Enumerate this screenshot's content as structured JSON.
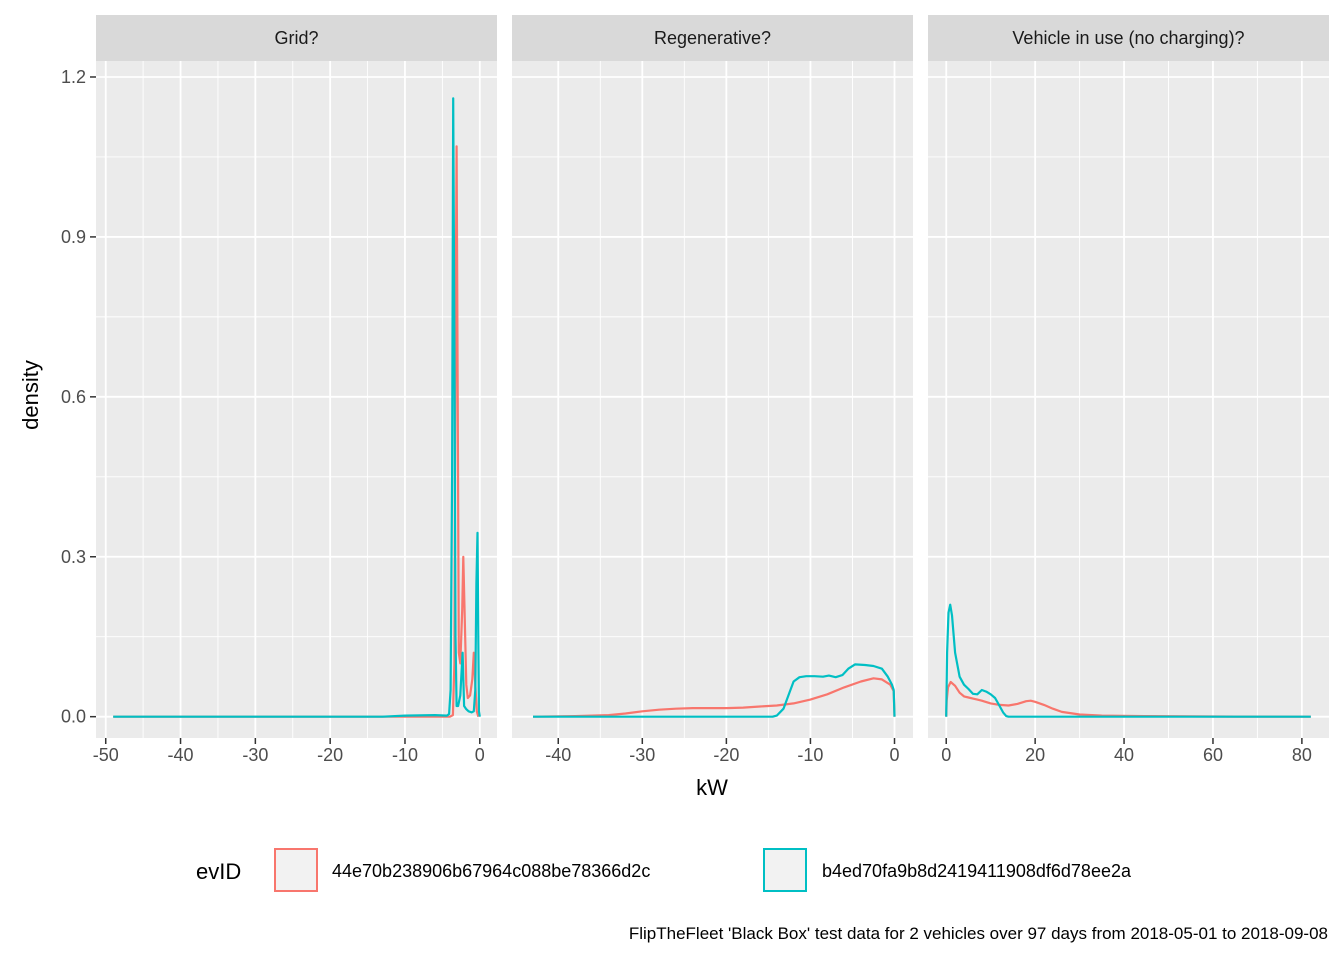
{
  "chart_data": {
    "type": "line",
    "xlabel": "kW",
    "ylabel": "density",
    "caption": "FlipTheFleet 'Black Box' test data for 2 vehicles over 97 days from 2018-05-01 to 2018-09-08",
    "ylim": [
      -0.04,
      1.23
    ],
    "y_ticks": [
      0.0,
      0.3,
      0.6,
      0.9,
      1.2
    ],
    "y_tick_labels": [
      "0.0",
      "0.3",
      "0.6",
      "0.9",
      "1.2"
    ],
    "grid": true,
    "legend": {
      "title": "evID",
      "position": "bottom",
      "entries": [
        {
          "label": "44e70b238906b67964c088be78366d2c",
          "color": "#F8766D"
        },
        {
          "label": "b4ed70fa9b8d2419411908df6d78ee2a",
          "color": "#00BFC4"
        }
      ]
    },
    "panels": [
      {
        "strip": "Grid?",
        "xlim": [
          -51.3,
          2.3
        ],
        "x_ticks": [
          -50,
          -40,
          -30,
          -20,
          -10,
          0
        ],
        "x_tick_labels": [
          "-50",
          "-40",
          "-30",
          "-20",
          "-10",
          "0"
        ],
        "series": [
          {
            "color": "#F8766D",
            "points": [
              [
                -49,
                0
              ],
              [
                -4.0,
                0
              ],
              [
                -3.6,
                0.003
              ],
              [
                -3.4,
                0.1
              ],
              [
                -3.25,
                0.7
              ],
              [
                -3.1,
                1.07
              ],
              [
                -2.95,
                0.6
              ],
              [
                -2.8,
                0.12
              ],
              [
                -2.6,
                0.1
              ],
              [
                -2.35,
                0.2
              ],
              [
                -2.2,
                0.3
              ],
              [
                -2.0,
                0.18
              ],
              [
                -1.8,
                0.06
              ],
              [
                -1.6,
                0.035
              ],
              [
                -1.3,
                0.04
              ],
              [
                -1.0,
                0.07
              ],
              [
                -0.8,
                0.12
              ],
              [
                -0.6,
                0.06
              ],
              [
                -0.4,
                0.01
              ],
              [
                -0.2,
                0
              ]
            ]
          },
          {
            "color": "#00BFC4",
            "points": [
              [
                -49,
                0
              ],
              [
                -13,
                0
              ],
              [
                -10,
                0.002
              ],
              [
                -6,
                0.003
              ],
              [
                -4.4,
                0.002
              ],
              [
                -4.1,
                0.005
              ],
              [
                -3.9,
                0.05
              ],
              [
                -3.7,
                0.45
              ],
              [
                -3.55,
                1.16
              ],
              [
                -3.4,
                0.7
              ],
              [
                -3.25,
                0.15
              ],
              [
                -3.1,
                0.02
              ],
              [
                -2.9,
                0.02
              ],
              [
                -2.6,
                0.04
              ],
              [
                -2.3,
                0.12
              ],
              [
                -2.1,
                0.02
              ],
              [
                -1.8,
                0.014
              ],
              [
                -1.5,
                0.01
              ],
              [
                -1.1,
                0.008
              ],
              [
                -0.8,
                0.01
              ],
              [
                -0.6,
                0.05
              ],
              [
                -0.45,
                0.25
              ],
              [
                -0.3,
                0.345
              ],
              [
                -0.2,
                0.15
              ],
              [
                -0.1,
                0.01
              ],
              [
                0,
                0
              ]
            ]
          }
        ]
      },
      {
        "strip": "Regenerative?",
        "xlim": [
          -45.5,
          2.2
        ],
        "x_ticks": [
          -40,
          -30,
          -20,
          -10,
          0
        ],
        "x_tick_labels": [
          "-40",
          "-30",
          "-20",
          "-10",
          "0"
        ],
        "series": [
          {
            "color": "#F8766D",
            "points": [
              [
                -43,
                0
              ],
              [
                -38,
                0.001
              ],
              [
                -34,
                0.003
              ],
              [
                -32,
                0.006
              ],
              [
                -30,
                0.01
              ],
              [
                -28,
                0.013
              ],
              [
                -26,
                0.015
              ],
              [
                -24,
                0.016
              ],
              [
                -22,
                0.016
              ],
              [
                -20,
                0.016
              ],
              [
                -18,
                0.017
              ],
              [
                -16,
                0.019
              ],
              [
                -14,
                0.021
              ],
              [
                -12,
                0.025
              ],
              [
                -10,
                0.032
              ],
              [
                -8,
                0.042
              ],
              [
                -6,
                0.055
              ],
              [
                -4,
                0.066
              ],
              [
                -2.5,
                0.072
              ],
              [
                -1.5,
                0.07
              ],
              [
                -0.5,
                0.06
              ],
              [
                -0.1,
                0.048
              ],
              [
                0,
                0
              ]
            ]
          },
          {
            "color": "#00BFC4",
            "points": [
              [
                -43,
                0
              ],
              [
                -14.5,
                0
              ],
              [
                -14,
                0.002
              ],
              [
                -13.2,
                0.015
              ],
              [
                -12.5,
                0.045
              ],
              [
                -12,
                0.066
              ],
              [
                -11.3,
                0.074
              ],
              [
                -10.5,
                0.076
              ],
              [
                -9.5,
                0.076
              ],
              [
                -8.5,
                0.075
              ],
              [
                -7.8,
                0.077
              ],
              [
                -7,
                0.074
              ],
              [
                -6.2,
                0.078
              ],
              [
                -5.5,
                0.09
              ],
              [
                -4.7,
                0.098
              ],
              [
                -3.5,
                0.097
              ],
              [
                -2.5,
                0.095
              ],
              [
                -1.5,
                0.09
              ],
              [
                -0.8,
                0.075
              ],
              [
                -0.3,
                0.06
              ],
              [
                -0.1,
                0.05
              ],
              [
                0,
                0
              ]
            ]
          }
        ]
      },
      {
        "strip": "Vehicle in use (no charging)?",
        "xlim": [
          -4.1,
          86.1
        ],
        "x_ticks": [
          0,
          20,
          40,
          60,
          80
        ],
        "x_tick_labels": [
          "0",
          "20",
          "40",
          "60",
          "80"
        ],
        "series": [
          {
            "color": "#F8766D",
            "points": [
              [
                0,
                0
              ],
              [
                0.1,
                0.03
              ],
              [
                0.4,
                0.055
              ],
              [
                1,
                0.065
              ],
              [
                2,
                0.058
              ],
              [
                3,
                0.045
              ],
              [
                4,
                0.038
              ],
              [
                5,
                0.036
              ],
              [
                6,
                0.034
              ],
              [
                7,
                0.032
              ],
              [
                8,
                0.03
              ],
              [
                10,
                0.025
              ],
              [
                12,
                0.022
              ],
              [
                14,
                0.021
              ],
              [
                16,
                0.024
              ],
              [
                18,
                0.029
              ],
              [
                19,
                0.03
              ],
              [
                20,
                0.028
              ],
              [
                22,
                0.022
              ],
              [
                24,
                0.015
              ],
              [
                26,
                0.009
              ],
              [
                30,
                0.004
              ],
              [
                35,
                0.002
              ],
              [
                45,
                0.001
              ],
              [
                55,
                0.0005
              ],
              [
                65,
                0.0002
              ],
              [
                82,
                0
              ]
            ]
          },
          {
            "color": "#00BFC4",
            "points": [
              [
                0,
                0
              ],
              [
                0.2,
                0.12
              ],
              [
                0.5,
                0.195
              ],
              [
                0.9,
                0.21
              ],
              [
                1.3,
                0.19
              ],
              [
                2,
                0.12
              ],
              [
                3,
                0.075
              ],
              [
                4,
                0.06
              ],
              [
                5,
                0.052
              ],
              [
                6,
                0.043
              ],
              [
                7,
                0.042
              ],
              [
                8,
                0.05
              ],
              [
                9,
                0.047
              ],
              [
                10,
                0.042
              ],
              [
                11,
                0.035
              ],
              [
                12,
                0.02
              ],
              [
                12.8,
                0.008
              ],
              [
                13.5,
                0.001
              ],
              [
                14,
                0
              ],
              [
                82,
                0
              ]
            ]
          }
        ]
      }
    ]
  }
}
